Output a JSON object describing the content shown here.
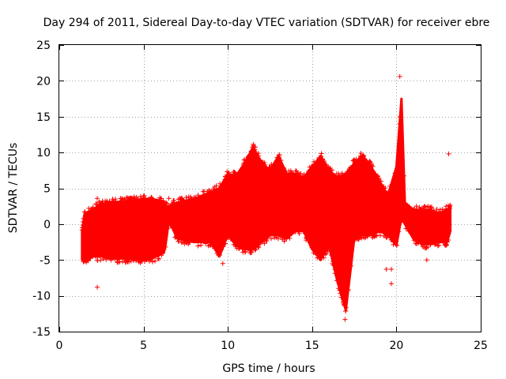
{
  "chart_data": {
    "type": "scatter",
    "title": "Day 294 of 2011, Sidereal Day-to-day VTEC variation (SDTVAR) for receiver ebre",
    "xlabel": "GPS time / hours",
    "ylabel": "SDTVAR / TECUs",
    "xlim": [
      0,
      25
    ],
    "ylim": [
      -15,
      25
    ],
    "xticks": [
      0,
      5,
      10,
      15,
      20,
      25
    ],
    "yticks": [
      -15,
      -10,
      -5,
      0,
      5,
      10,
      15,
      20,
      25
    ],
    "grid": true,
    "series": [
      {
        "name": "SDTVAR",
        "color": "#ff0000",
        "marker": "plus",
        "envelope": {
          "x": [
            1.35,
            1.5,
            2.0,
            2.5,
            3.0,
            4.0,
            5.0,
            5.5,
            6.2,
            6.3,
            6.5,
            7.0,
            8.0,
            9.0,
            9.5,
            10.0,
            10.5,
            11.0,
            11.5,
            12.0,
            12.5,
            13.0,
            13.5,
            14.0,
            14.5,
            15.0,
            15.5,
            16.0,
            16.5,
            17.0,
            17.5,
            18.0,
            18.5,
            19.0,
            19.5,
            20.0,
            20.3,
            20.5,
            21.0,
            21.5,
            22.0,
            22.5,
            23.0,
            23.2
          ],
          "high": [
            -1.0,
            1.5,
            2.0,
            2.8,
            3.0,
            3.2,
            3.5,
            3.5,
            3.2,
            2.5,
            2.5,
            3.0,
            3.5,
            4.5,
            5.0,
            7.0,
            6.8,
            8.5,
            10.8,
            8.5,
            7.5,
            9.5,
            7.0,
            7.0,
            6.5,
            8.0,
            9.5,
            7.5,
            6.5,
            7.0,
            8.5,
            9.5,
            8.0,
            6.0,
            4.0,
            8.0,
            17.5,
            3.0,
            2.0,
            2.0,
            2.0,
            1.5,
            2.0,
            2.5
          ],
          "low": [
            -5.0,
            -5.0,
            -4.5,
            -4.5,
            -4.8,
            -4.8,
            -5.0,
            -4.8,
            -4.0,
            -3.0,
            0.5,
            -2.0,
            -2.5,
            -2.5,
            -4.5,
            -1.5,
            -3.0,
            -3.5,
            -3.5,
            -2.5,
            -1.5,
            -1.5,
            -2.0,
            -1.0,
            -1.0,
            -3.5,
            -5.0,
            -3.0,
            -8.0,
            -12.0,
            -2.0,
            -1.5,
            -1.5,
            -1.0,
            -1.5,
            -3.0,
            1.0,
            0.0,
            -2.0,
            -2.8,
            -2.8,
            -2.5,
            -2.5,
            -1.0
          ]
        },
        "outliers": [
          {
            "x": 2.25,
            "y": -8.8
          },
          {
            "x": 2.25,
            "y": 3.6
          },
          {
            "x": 6.5,
            "y": 3.6
          },
          {
            "x": 9.7,
            "y": -5.5
          },
          {
            "x": 15.3,
            "y": -4.2
          },
          {
            "x": 16.95,
            "y": -13.3
          },
          {
            "x": 17.9,
            "y": 9.9
          },
          {
            "x": 19.4,
            "y": -6.3
          },
          {
            "x": 19.7,
            "y": -6.3
          },
          {
            "x": 19.7,
            "y": -8.3
          },
          {
            "x": 20.2,
            "y": 20.6
          },
          {
            "x": 21.8,
            "y": -5.0
          },
          {
            "x": 23.1,
            "y": 9.8
          }
        ]
      }
    ]
  }
}
